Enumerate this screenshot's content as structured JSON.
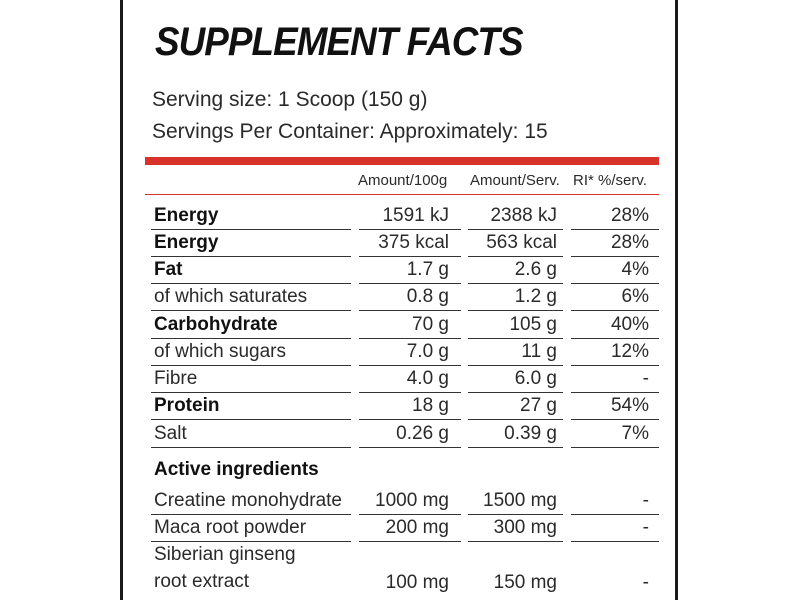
{
  "title": "SUPPLEMENT FACTS",
  "serving_size": "Serving size: 1 Scoop (150 g)",
  "servings_per_container": "Servings Per Container: Approximately: 15",
  "headers": {
    "per100": "Amount/100g",
    "perServ": "Amount/Serv.",
    "ri": "RI* %/serv."
  },
  "nutrients": [
    {
      "label": "Energy",
      "bold": true,
      "per100": "1591 kJ",
      "perServ": "2388 kJ",
      "ri": "28%"
    },
    {
      "label": "Energy",
      "bold": true,
      "per100": "375 kcal",
      "perServ": "563 kcal",
      "ri": "28%"
    },
    {
      "label": "Fat",
      "bold": true,
      "per100": "1.7 g",
      "perServ": "2.6 g",
      "ri": "4%"
    },
    {
      "label": "of which saturates",
      "bold": false,
      "per100": "0.8 g",
      "perServ": "1.2 g",
      "ri": "6%"
    },
    {
      "label": "Carbohydrate",
      "bold": true,
      "per100": "70 g",
      "perServ": "105 g",
      "ri": "40%"
    },
    {
      "label": "of which sugars",
      "bold": false,
      "per100": "7.0 g",
      "perServ": "11 g",
      "ri": "12%"
    },
    {
      "label": "Fibre",
      "bold": false,
      "per100": "4.0 g",
      "perServ": "6.0 g",
      "ri": "-"
    },
    {
      "label": "Protein",
      "bold": true,
      "per100": "18 g",
      "perServ": "27 g",
      "ri": "54%"
    },
    {
      "label": "Salt",
      "bold": false,
      "per100": "0.26 g",
      "perServ": "0.39 g",
      "ri": "7%"
    }
  ],
  "active_heading": "Active ingredients",
  "active": [
    {
      "label": "Creatine monohydrate",
      "per100": "1000 mg",
      "perServ": "1500 mg",
      "ri": "-"
    },
    {
      "label": "Maca root powder",
      "per100": "200 mg",
      "perServ": "300 mg",
      "ri": "-"
    },
    {
      "label": "Siberian ginseng",
      "label2": "root extract",
      "per100": "100 mg",
      "perServ": "150 mg",
      "ri": "-"
    }
  ]
}
